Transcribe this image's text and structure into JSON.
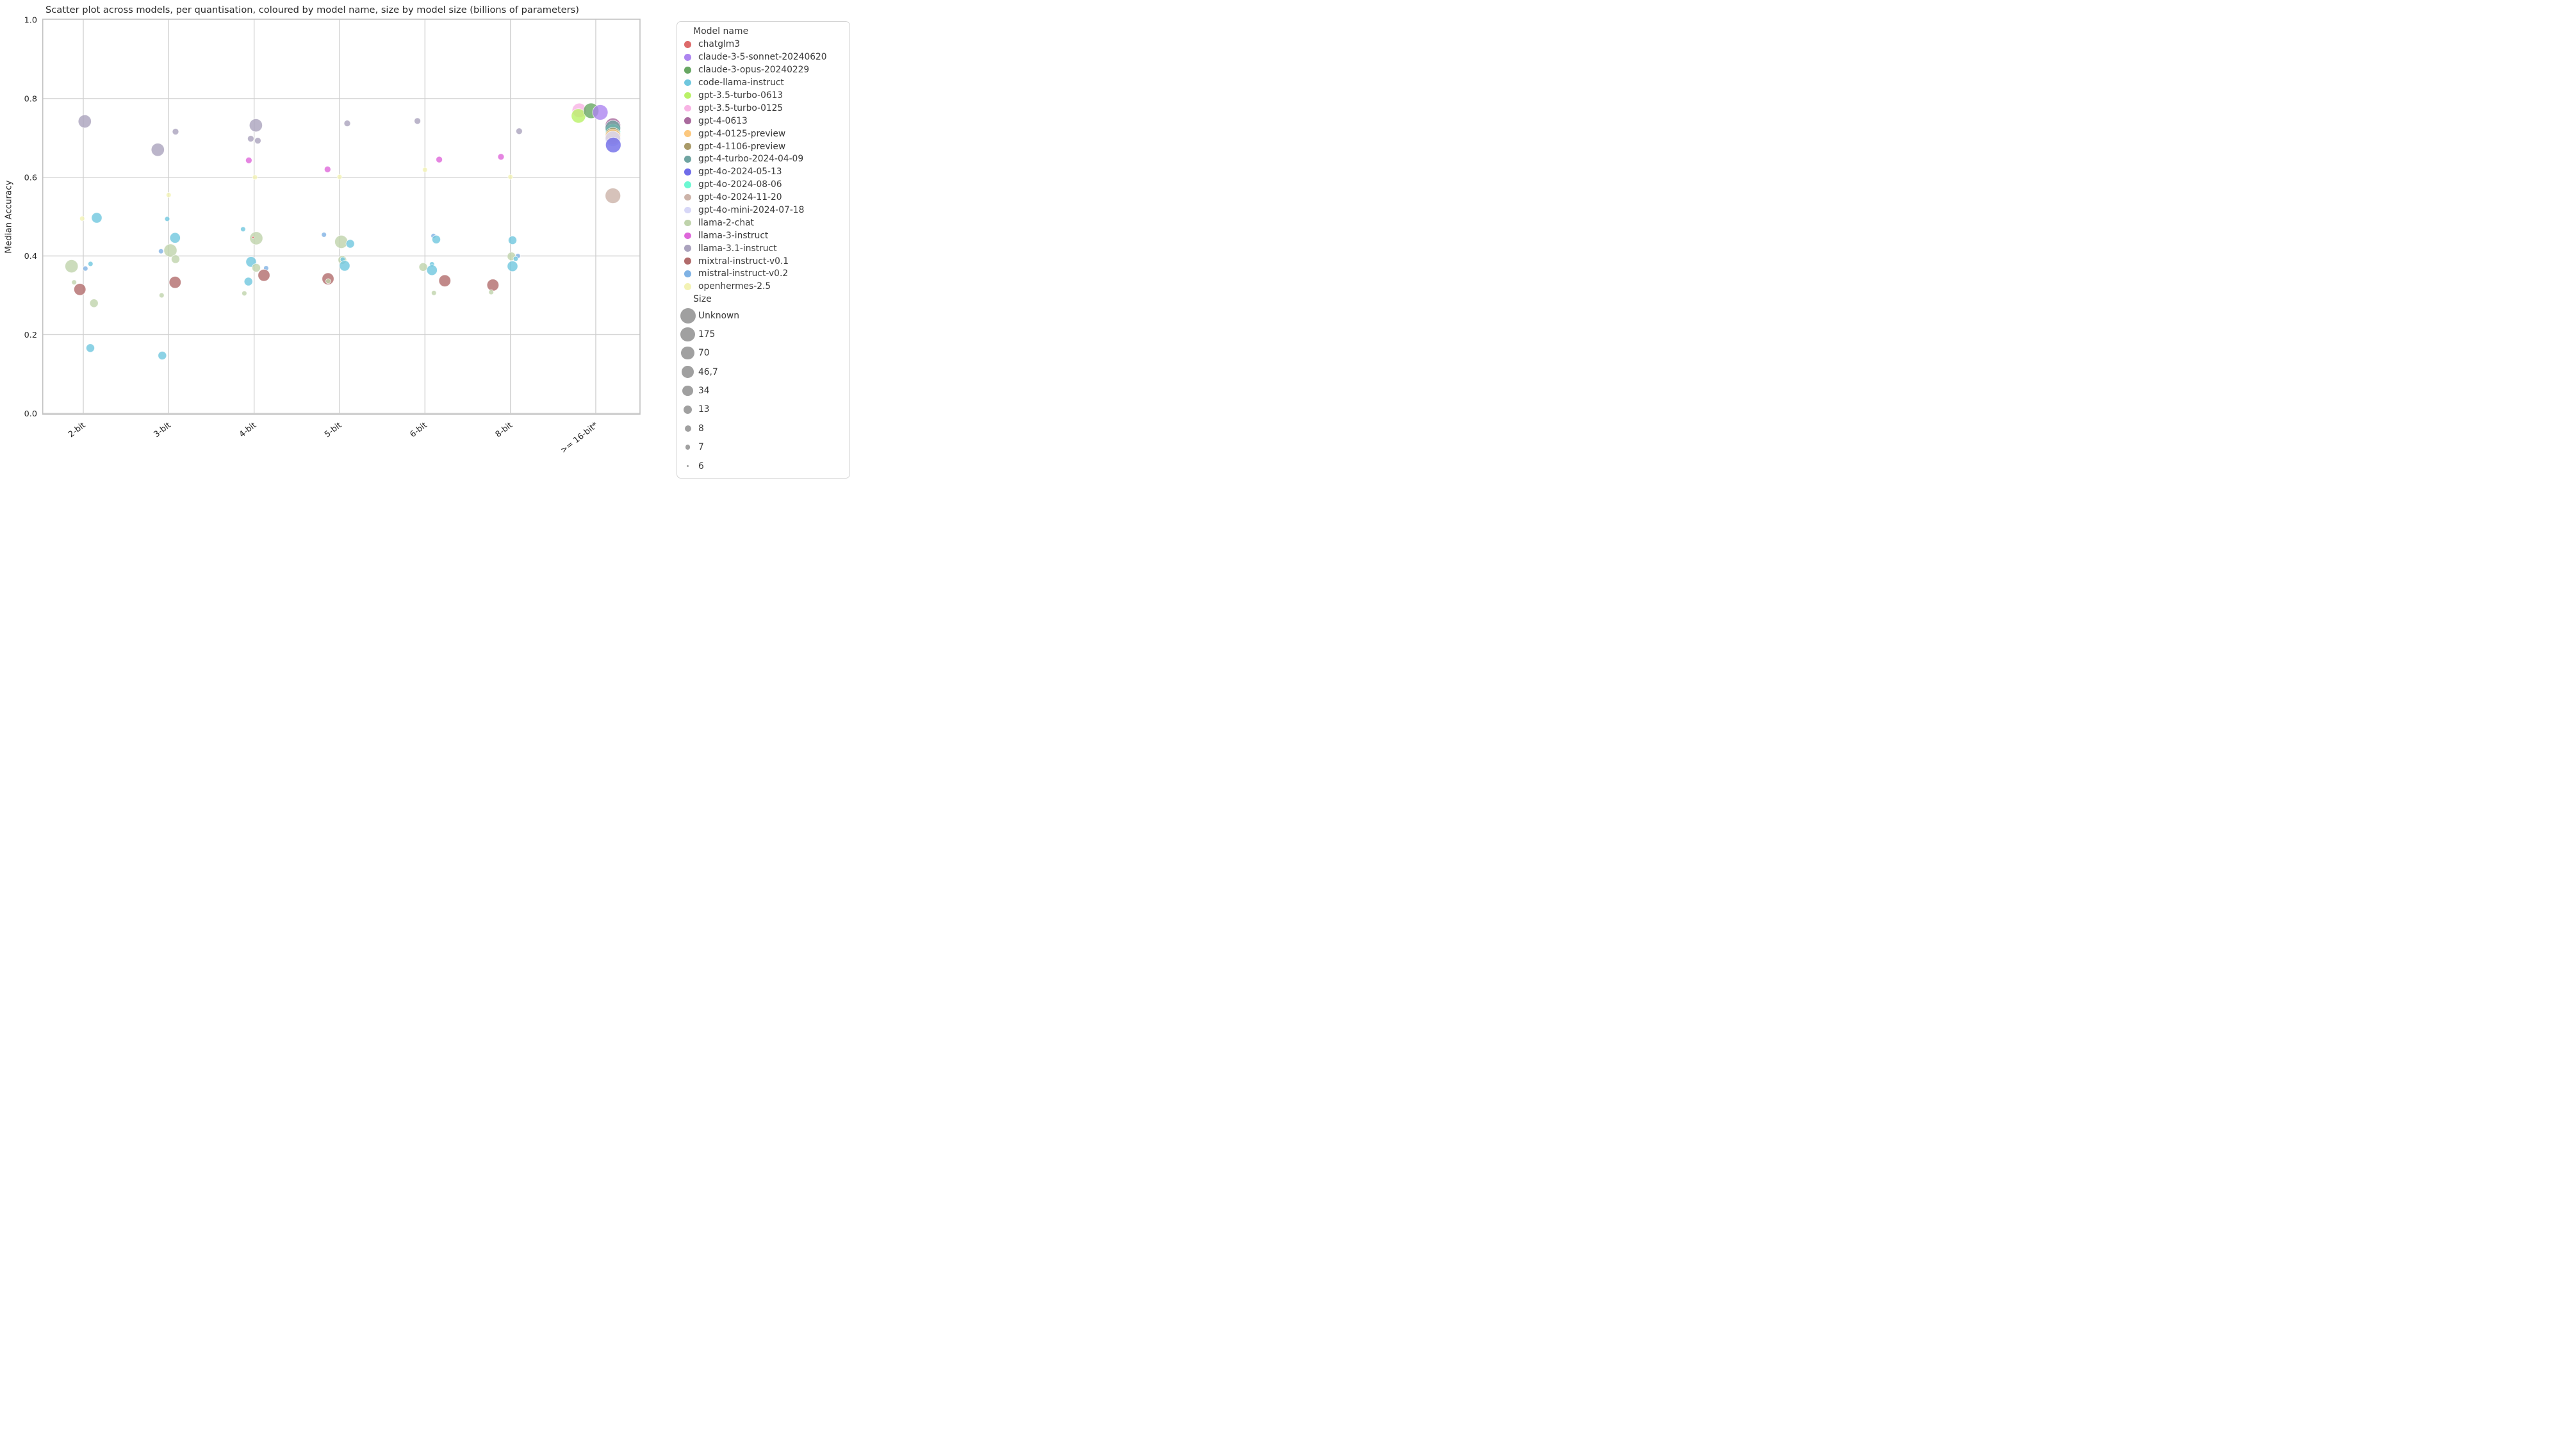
{
  "chart_data": {
    "type": "scatter",
    "title": "Scatter plot across models, per quantisation, coloured by model name, size by model size (billions of parameters)",
    "xlabel": "",
    "ylabel": "Median Accuracy",
    "ylim": [
      0.0,
      1.0
    ],
    "yticks": [
      0.0,
      0.2,
      0.4,
      0.6,
      0.8,
      1.0
    ],
    "categories": [
      "2-bit",
      "3-bit",
      "4-bit",
      "5-bit",
      "6-bit",
      "8-bit",
      ">= 16-bit*"
    ],
    "grid": true,
    "legend_position": "right",
    "marker_alpha": 0.8,
    "grid_color": "#cfcfcf",
    "frame_color": "#c2c2c2",
    "size_legend_color": "#a0a0a0",
    "model_colors": {
      "chatglm3": "#dd6a6a",
      "claude-3-5-sonnet-20240620": "#ad85f0",
      "claude-3-opus-20240229": "#68a763",
      "code-llama-instruct": "#6fc7de",
      "gpt-3.5-turbo-0613": "#b9f167",
      "gpt-3.5-turbo-0125": "#f8b3e4",
      "gpt-4-0613": "#a96a9d",
      "gpt-4-0125-preview": "#fcc87e",
      "gpt-4-1106-preview": "#a99a69",
      "gpt-4-turbo-2024-04-09": "#6fa4a1",
      "gpt-4o-2024-05-13": "#6f6ce9",
      "gpt-4o-2024-08-06": "#6cf8d2",
      "gpt-4o-2024-11-20": "#ccb3a9",
      "gpt-4o-mini-2024-07-18": "#d7d7f7",
      "llama-2-chat": "#bfd3ab",
      "llama-3-instruct": "#de67da",
      "llama-3.1-instruct": "#aaa2bd",
      "mixtral-instruct-v0.1": "#b16b6b",
      "mistral-instruct-v0.2": "#7fb2e4",
      "openhermes-2.5": "#f3f2b4"
    },
    "size_radius": {
      "Unknown": 12,
      "175": 11.2,
      "70": 10.2,
      "46.7": 9.3,
      "34": 8.2,
      "13": 6.6,
      "8": 5,
      "7": 3.9,
      "6": 1.8
    },
    "points": [
      {
        "model": "llama-3.1-instruct",
        "size": "70",
        "category": "2-bit",
        "y": 0.742,
        "dx": 2.3
      },
      {
        "model": "openhermes-2.5",
        "size": "7",
        "category": "2-bit",
        "y": 0.495,
        "dx": -1.7
      },
      {
        "model": "code-llama-instruct",
        "size": "34",
        "category": "2-bit",
        "y": 0.497,
        "dx": 21
      },
      {
        "model": "llama-2-chat",
        "size": "70",
        "category": "2-bit",
        "y": 0.374,
        "dx": -18.3
      },
      {
        "model": "mistral-instruct-v0.2",
        "size": "7",
        "category": "2-bit",
        "y": 0.368,
        "dx": 3.3
      },
      {
        "model": "code-llama-instruct",
        "size": "7",
        "category": "2-bit",
        "y": 0.38,
        "dx": 11.3
      },
      {
        "model": "llama-2-chat",
        "size": "7",
        "category": "2-bit",
        "y": 0.333,
        "dx": -14.3
      },
      {
        "model": "mixtral-instruct-v0.1",
        "size": "46.7",
        "category": "2-bit",
        "y": 0.315,
        "dx": -5.3
      },
      {
        "model": "llama-2-chat",
        "size": "13",
        "category": "2-bit",
        "y": 0.28,
        "dx": 16.7
      },
      {
        "model": "code-llama-instruct",
        "size": "13",
        "category": "2-bit",
        "y": 0.166,
        "dx": 11
      },
      {
        "model": "llama-3.1-instruct",
        "size": "70",
        "category": "3-bit",
        "y": 0.67,
        "dx": -17
      },
      {
        "model": "llama-3.1-instruct",
        "size": "8",
        "category": "3-bit",
        "y": 0.716,
        "dx": 10.7
      },
      {
        "model": "openhermes-2.5",
        "size": "7",
        "category": "3-bit",
        "y": 0.555,
        "dx": 0
      },
      {
        "model": "code-llama-instruct",
        "size": "7",
        "category": "3-bit",
        "y": 0.494,
        "dx": -2.3
      },
      {
        "model": "code-llama-instruct",
        "size": "34",
        "category": "3-bit",
        "y": 0.446,
        "dx": 10
      },
      {
        "model": "mistral-instruct-v0.2",
        "size": "7",
        "category": "3-bit",
        "y": 0.412,
        "dx": -12
      },
      {
        "model": "llama-2-chat",
        "size": "70",
        "category": "3-bit",
        "y": 0.414,
        "dx": 2.7
      },
      {
        "model": "llama-2-chat",
        "size": "13",
        "category": "3-bit",
        "y": 0.392,
        "dx": 10.7
      },
      {
        "model": "mixtral-instruct-v0.1",
        "size": "46.7",
        "category": "3-bit",
        "y": 0.333,
        "dx": 10
      },
      {
        "model": "llama-2-chat",
        "size": "7",
        "category": "3-bit",
        "y": 0.3,
        "dx": -11
      },
      {
        "model": "code-llama-instruct",
        "size": "13",
        "category": "3-bit",
        "y": 0.147,
        "dx": -10
      },
      {
        "model": "llama-3.1-instruct",
        "size": "70",
        "category": "4-bit",
        "y": 0.732,
        "dx": 2.7
      },
      {
        "model": "llama-3.1-instruct",
        "size": "8",
        "category": "4-bit",
        "y": 0.698,
        "dx": -5.3
      },
      {
        "model": "llama-3.1-instruct",
        "size": "8",
        "category": "4-bit",
        "y": 0.693,
        "dx": 5.7
      },
      {
        "model": "llama-3-instruct",
        "size": "8",
        "category": "4-bit",
        "y": 0.643,
        "dx": -8.3
      },
      {
        "model": "openhermes-2.5",
        "size": "7",
        "category": "4-bit",
        "y": 0.6,
        "dx": 1.3
      },
      {
        "model": "code-llama-instruct",
        "size": "7",
        "category": "4-bit",
        "y": 0.468,
        "dx": -17.3
      },
      {
        "model": "llama-2-chat",
        "size": "70",
        "category": "4-bit",
        "y": 0.445,
        "dx": 3.3
      },
      {
        "model": "chatglm3",
        "size": "6",
        "category": "4-bit",
        "y": 0.447,
        "dx": -1.7
      },
      {
        "model": "code-llama-instruct",
        "size": "34",
        "category": "4-bit",
        "y": 0.385,
        "dx": -4.7
      },
      {
        "model": "llama-2-chat",
        "size": "13",
        "category": "4-bit",
        "y": 0.37,
        "dx": 3.3
      },
      {
        "model": "mistral-instruct-v0.2",
        "size": "7",
        "category": "4-bit",
        "y": 0.369,
        "dx": 18.7
      },
      {
        "model": "mixtral-instruct-v0.1",
        "size": "46.7",
        "category": "4-bit",
        "y": 0.351,
        "dx": 15.3
      },
      {
        "model": "code-llama-instruct",
        "size": "13",
        "category": "4-bit",
        "y": 0.335,
        "dx": -9
      },
      {
        "model": "llama-2-chat",
        "size": "7",
        "category": "4-bit",
        "y": 0.305,
        "dx": -15.3
      },
      {
        "model": "llama-3.1-instruct",
        "size": "8",
        "category": "5-bit",
        "y": 0.737,
        "dx": 12
      },
      {
        "model": "llama-3-instruct",
        "size": "8",
        "category": "5-bit",
        "y": 0.62,
        "dx": -18.7
      },
      {
        "model": "openhermes-2.5",
        "size": "7",
        "category": "5-bit",
        "y": 0.601,
        "dx": 0
      },
      {
        "model": "mistral-instruct-v0.2",
        "size": "7",
        "category": "5-bit",
        "y": 0.454,
        "dx": -24.3
      },
      {
        "model": "llama-2-chat",
        "size": "70",
        "category": "5-bit",
        "y": 0.436,
        "dx": 2.7
      },
      {
        "model": "code-llama-instruct",
        "size": "13",
        "category": "5-bit",
        "y": 0.431,
        "dx": 16.7
      },
      {
        "model": "llama-2-chat",
        "size": "13",
        "category": "5-bit",
        "y": 0.39,
        "dx": 4.3
      },
      {
        "model": "code-llama-instruct",
        "size": "7",
        "category": "5-bit",
        "y": 0.391,
        "dx": 5
      },
      {
        "model": "code-llama-instruct",
        "size": "34",
        "category": "5-bit",
        "y": 0.375,
        "dx": 8
      },
      {
        "model": "mixtral-instruct-v0.1",
        "size": "46.7",
        "category": "5-bit",
        "y": 0.342,
        "dx": -18
      },
      {
        "model": "llama-2-chat",
        "size": "7",
        "category": "5-bit",
        "y": 0.336,
        "dx": -17.7
      },
      {
        "model": "llama-3.1-instruct",
        "size": "8",
        "category": "6-bit",
        "y": 0.743,
        "dx": -11.7
      },
      {
        "model": "llama-3-instruct",
        "size": "8",
        "category": "6-bit",
        "y": 0.645,
        "dx": 22.3
      },
      {
        "model": "openhermes-2.5",
        "size": "7",
        "category": "6-bit",
        "y": 0.619,
        "dx": 0
      },
      {
        "model": "mistral-instruct-v0.2",
        "size": "7",
        "category": "6-bit",
        "y": 0.451,
        "dx": 13.3
      },
      {
        "model": "code-llama-instruct",
        "size": "13",
        "category": "6-bit",
        "y": 0.442,
        "dx": 17.7
      },
      {
        "model": "llama-2-chat",
        "size": "13",
        "category": "6-bit",
        "y": 0.372,
        "dx": -2.7
      },
      {
        "model": "code-llama-instruct",
        "size": "7",
        "category": "6-bit",
        "y": 0.379,
        "dx": 11
      },
      {
        "model": "code-llama-instruct",
        "size": "34",
        "category": "6-bit",
        "y": 0.364,
        "dx": 11
      },
      {
        "model": "mixtral-instruct-v0.1",
        "size": "46.7",
        "category": "6-bit",
        "y": 0.337,
        "dx": 31
      },
      {
        "model": "llama-2-chat",
        "size": "7",
        "category": "6-bit",
        "y": 0.306,
        "dx": 14
      },
      {
        "model": "llama-3.1-instruct",
        "size": "8",
        "category": "8-bit",
        "y": 0.717,
        "dx": 13.7
      },
      {
        "model": "llama-3-instruct",
        "size": "8",
        "category": "8-bit",
        "y": 0.652,
        "dx": -14.7
      },
      {
        "model": "openhermes-2.5",
        "size": "7",
        "category": "8-bit",
        "y": 0.601,
        "dx": 0
      },
      {
        "model": "code-llama-instruct",
        "size": "13",
        "category": "8-bit",
        "y": 0.44,
        "dx": 3.3
      },
      {
        "model": "llama-2-chat",
        "size": "13",
        "category": "8-bit",
        "y": 0.399,
        "dx": 1.7
      },
      {
        "model": "mistral-instruct-v0.2",
        "size": "7",
        "category": "8-bit",
        "y": 0.4,
        "dx": 11.7
      },
      {
        "model": "code-llama-instruct",
        "size": "7",
        "category": "8-bit",
        "y": 0.393,
        "dx": 8.3
      },
      {
        "model": "code-llama-instruct",
        "size": "34",
        "category": "8-bit",
        "y": 0.374,
        "dx": 3.3
      },
      {
        "model": "mixtral-instruct-v0.1",
        "size": "46.7",
        "category": "8-bit",
        "y": 0.326,
        "dx": -27.3
      },
      {
        "model": "llama-2-chat",
        "size": "7",
        "category": "8-bit",
        "y": 0.308,
        "dx": -30
      },
      {
        "model": "gpt-3.5-turbo-0125",
        "size": "175",
        "category": ">= 16-bit*",
        "y": 0.77,
        "dx": -25.7
      },
      {
        "model": "gpt-3.5-turbo-0613",
        "size": "175",
        "category": ">= 16-bit*",
        "y": 0.756,
        "dx": -27
      },
      {
        "model": "claude-3-opus-20240229",
        "size": "Unknown",
        "category": ">= 16-bit*",
        "y": 0.769,
        "dx": -7.3
      },
      {
        "model": "claude-3-5-sonnet-20240620",
        "size": "Unknown",
        "category": ">= 16-bit*",
        "y": 0.765,
        "dx": 7
      },
      {
        "model": "gpt-4-0613",
        "size": "Unknown",
        "category": ">= 16-bit*",
        "y": 0.731,
        "dx": 26.7
      },
      {
        "model": "gpt-4o-2024-08-06",
        "size": "Unknown",
        "category": ">= 16-bit*",
        "y": 0.716,
        "dx": 26.7
      },
      {
        "model": "gpt-4-turbo-2024-04-09",
        "size": "Unknown",
        "category": ">= 16-bit*",
        "y": 0.725,
        "dx": 26.7
      },
      {
        "model": "gpt-4-1106-preview",
        "size": "Unknown",
        "category": ">= 16-bit*",
        "y": 0.707,
        "dx": 26.7
      },
      {
        "model": "gpt-4-0125-preview",
        "size": "Unknown",
        "category": ">= 16-bit*",
        "y": 0.703,
        "dx": 26.7
      },
      {
        "model": "gpt-4o-mini-2024-07-18",
        "size": "Unknown",
        "category": ">= 16-bit*",
        "y": 0.698,
        "dx": 26.7
      },
      {
        "model": "gpt-4o-2024-05-13",
        "size": "Unknown",
        "category": ">= 16-bit*",
        "y": 0.682,
        "dx": 27.3
      },
      {
        "model": "gpt-4o-2024-11-20",
        "size": "Unknown",
        "category": ">= 16-bit*",
        "y": 0.553,
        "dx": 26.7
      }
    ]
  },
  "legend": {
    "model_header": "Model name",
    "size_header": "Size",
    "models": [
      {
        "name": "chatglm3",
        "color": "#dd6a6a"
      },
      {
        "name": "claude-3-5-sonnet-20240620",
        "color": "#ad85f0"
      },
      {
        "name": "claude-3-opus-20240229",
        "color": "#68a763"
      },
      {
        "name": "code-llama-instruct",
        "color": "#6fc7de"
      },
      {
        "name": "gpt-3.5-turbo-0613",
        "color": "#b9f167"
      },
      {
        "name": "gpt-3.5-turbo-0125",
        "color": "#f8b3e4"
      },
      {
        "name": "gpt-4-0613",
        "color": "#a96a9d"
      },
      {
        "name": "gpt-4-0125-preview",
        "color": "#fcc87e"
      },
      {
        "name": "gpt-4-1106-preview",
        "color": "#a99a69"
      },
      {
        "name": "gpt-4-turbo-2024-04-09",
        "color": "#6fa4a1"
      },
      {
        "name": "gpt-4o-2024-05-13",
        "color": "#6f6ce9"
      },
      {
        "name": "gpt-4o-2024-08-06",
        "color": "#6cf8d2"
      },
      {
        "name": "gpt-4o-2024-11-20",
        "color": "#ccb3a9"
      },
      {
        "name": "gpt-4o-mini-2024-07-18",
        "color": "#d7d7f7"
      },
      {
        "name": "llama-2-chat",
        "color": "#bfd3ab"
      },
      {
        "name": "llama-3-instruct",
        "color": "#de67da"
      },
      {
        "name": "llama-3.1-instruct",
        "color": "#aaa2bd"
      },
      {
        "name": "mixtral-instruct-v0.1",
        "color": "#b16b6b"
      },
      {
        "name": "mistral-instruct-v0.2",
        "color": "#7fb2e4"
      },
      {
        "name": "openhermes-2.5",
        "color": "#f3f2b4"
      }
    ],
    "sizes": [
      {
        "label": "Unknown",
        "r": 12
      },
      {
        "label": "175",
        "r": 11.2
      },
      {
        "label": "70",
        "r": 10.2
      },
      {
        "label": "46,7",
        "r": 9.3
      },
      {
        "label": "34",
        "r": 8.2
      },
      {
        "label": "13",
        "r": 6.6
      },
      {
        "label": "8",
        "r": 5
      },
      {
        "label": "7",
        "r": 3.9
      },
      {
        "label": "6",
        "r": 1.8
      }
    ]
  }
}
